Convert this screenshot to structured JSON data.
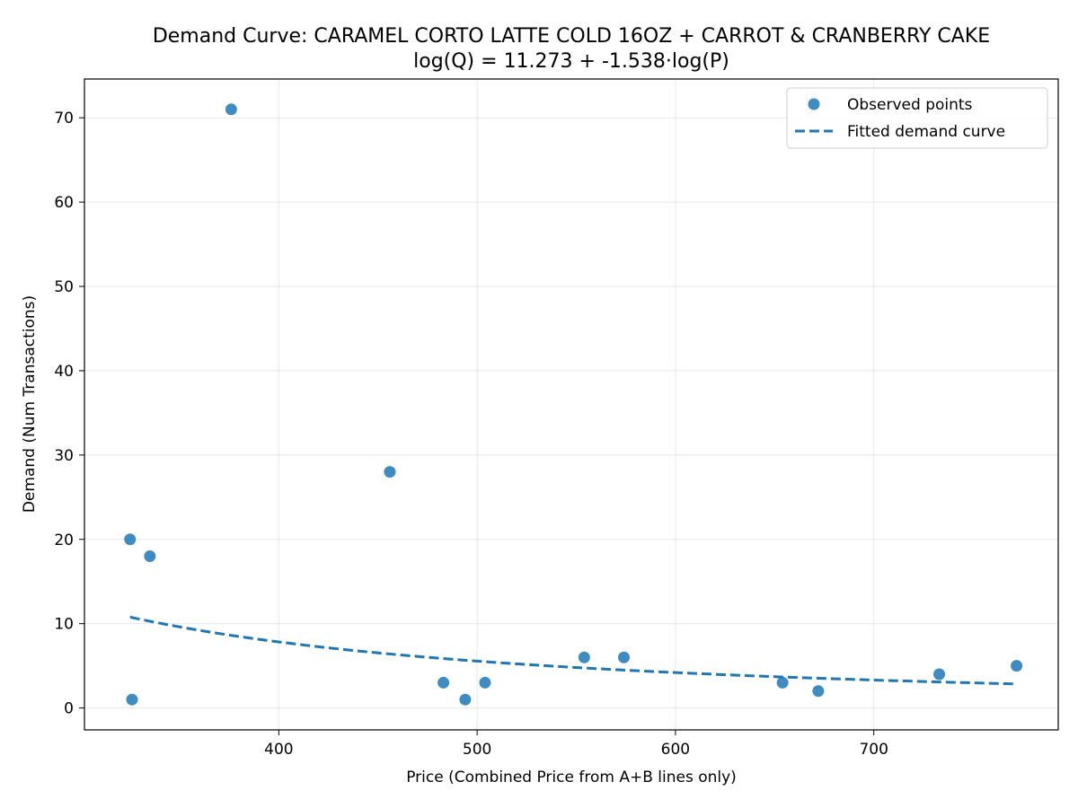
{
  "chart_data": {
    "type": "scatter",
    "title": "Demand Curve: CARAMEL CORTO LATTE COLD 16OZ + CARROT & CRANBERRY CAKE",
    "subtitle": "log(Q) = 11.273 + -1.538·log(P)",
    "xlabel": "Price (Combined Price from A+B lines only)",
    "ylabel": "Demand (Num Transactions)",
    "xlim": [
      302,
      793
    ],
    "ylim": [
      -2.6,
      74.6
    ],
    "xticks": [
      400,
      500,
      600,
      700
    ],
    "yticks": [
      0,
      10,
      20,
      30,
      40,
      50,
      60,
      70
    ],
    "grid": true,
    "legend_position": "top-right",
    "series": [
      {
        "name": "Observed points",
        "kind": "scatter",
        "color": "#1f77b4",
        "points": [
          {
            "x": 325,
            "y": 20
          },
          {
            "x": 326,
            "y": 1
          },
          {
            "x": 335,
            "y": 18
          },
          {
            "x": 376,
            "y": 71
          },
          {
            "x": 456,
            "y": 28
          },
          {
            "x": 483,
            "y": 3
          },
          {
            "x": 494,
            "y": 1
          },
          {
            "x": 504,
            "y": 3
          },
          {
            "x": 554,
            "y": 6
          },
          {
            "x": 574,
            "y": 6
          },
          {
            "x": 654,
            "y": 3
          },
          {
            "x": 672,
            "y": 2
          },
          {
            "x": 733,
            "y": 4
          },
          {
            "x": 772,
            "y": 5
          }
        ]
      },
      {
        "name": "Fitted demand curve",
        "kind": "line",
        "style": "dashed",
        "color": "#1f77b4",
        "intercept": 11.273,
        "slope": -1.538,
        "x_range": [
          325,
          772
        ]
      }
    ]
  }
}
